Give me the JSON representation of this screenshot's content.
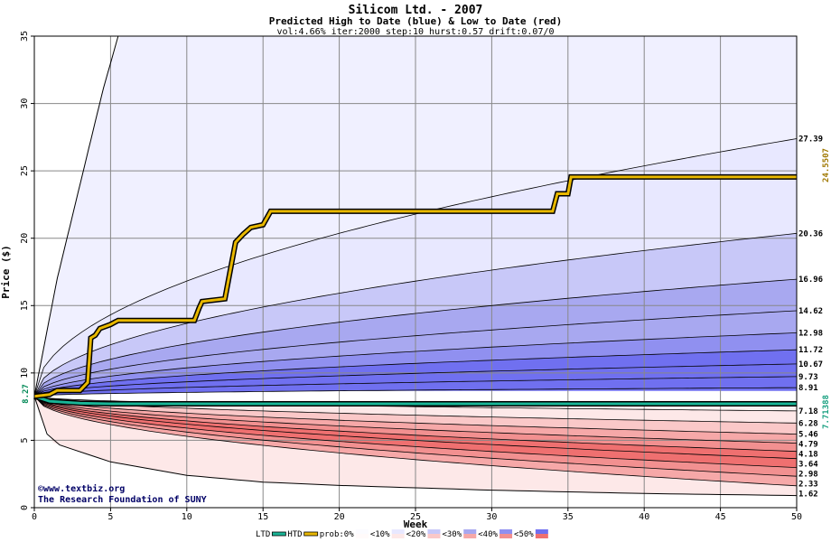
{
  "title": "Silicom Ltd. - 2007",
  "subtitle": "Predicted High to Date (blue) &  Low to Date (red)",
  "params": "vol:4.66% iter:2000 step:10 hurst:0.57 drift:0.07/0",
  "credit_line1": "©www.textbiz.org",
  "credit_line2": "The Research Foundation of SUNY",
  "start_price_label": "8.27",
  "colors": {
    "htd_line": "#e8b800",
    "ltd_line": "#19b596",
    "blue_band_deep": "#7474f4",
    "red_band_deep": "#f07474"
  },
  "chart_data": {
    "type": "area",
    "xlabel": "Week",
    "ylabel": "Price ($)",
    "xlim": [
      0,
      50
    ],
    "ylim": [
      0,
      35
    ],
    "x_ticks": [
      "0",
      "5",
      "10",
      "15",
      "20",
      "25",
      "30",
      "35",
      "40",
      "45",
      "50"
    ],
    "y_ticks": [
      "0",
      "5",
      "10",
      "15",
      "20",
      "25",
      "30",
      "35"
    ],
    "grid": true,
    "start_price": 8.27,
    "upper_envelope": {
      "name": "upper bound",
      "points": [
        [
          0,
          8.27
        ],
        [
          1.5,
          17
        ],
        [
          3,
          24
        ],
        [
          4.5,
          31
        ],
        [
          5.5,
          35
        ]
      ]
    },
    "lower_envelope": {
      "name": "lower bound",
      "points": [
        [
          0,
          8.27
        ],
        [
          1,
          4.9
        ],
        [
          5,
          3.4
        ],
        [
          10,
          2.4
        ],
        [
          15,
          1.9
        ],
        [
          20,
          1.65
        ],
        [
          30,
          1.3
        ],
        [
          40,
          1.05
        ],
        [
          50,
          0.9
        ]
      ]
    },
    "percentile_curves_end_values": [
      27.39,
      20.36,
      16.96,
      14.62,
      12.98,
      11.72,
      10.67,
      9.73,
      8.91,
      7.18,
      6.28,
      5.46,
      4.79,
      4.18,
      3.64,
      2.98,
      2.33,
      1.62
    ],
    "htd_series": {
      "name": "HTD",
      "end_value": 24.5507,
      "end_label": "24.5507",
      "points": [
        [
          0,
          8.27
        ],
        [
          1,
          8.4
        ],
        [
          1.5,
          8.7
        ],
        [
          3,
          8.7
        ],
        [
          3.5,
          9.3
        ],
        [
          3.7,
          12.6
        ],
        [
          4,
          12.8
        ],
        [
          4.3,
          13.3
        ],
        [
          5,
          13.6
        ],
        [
          5.5,
          13.9
        ],
        [
          10.5,
          13.9
        ],
        [
          10.8,
          14.8
        ],
        [
          11,
          15.3
        ],
        [
          12.5,
          15.5
        ],
        [
          13.2,
          19.7
        ],
        [
          13.7,
          20.3
        ],
        [
          14.2,
          20.8
        ],
        [
          15,
          21.0
        ],
        [
          15.5,
          22.0
        ],
        [
          34,
          22.0
        ],
        [
          34.3,
          23.3
        ],
        [
          35,
          23.3
        ],
        [
          35.2,
          24.55
        ],
        [
          50,
          24.55
        ]
      ]
    },
    "ltd_series": {
      "name": "LTD",
      "end_value": 7.71388,
      "end_label": "7.71388",
      "points": [
        [
          0,
          8.27
        ],
        [
          1,
          7.9
        ],
        [
          3,
          7.75
        ],
        [
          5,
          7.71
        ],
        [
          50,
          7.71
        ]
      ]
    },
    "legend": {
      "ltd": "LTD",
      "htd": "HTD",
      "prob_prefix": "prob:0%",
      "bins": [
        "<10%",
        "<20%",
        "<30%",
        "<40%",
        "<50%"
      ],
      "bin_colors": [
        "#e8e8ff",
        "#c8c8f8",
        "#a8a8f0",
        "#9090f0",
        "#7070f0"
      ],
      "bin_colors_red": [
        "#fde8e8",
        "#fac8c8",
        "#f6a8a8",
        "#f29090",
        "#ef7070"
      ]
    }
  }
}
